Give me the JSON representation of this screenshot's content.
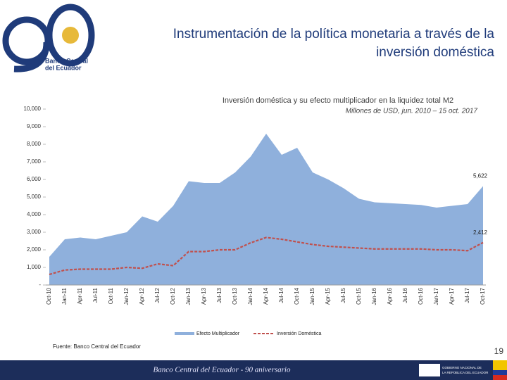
{
  "header": {
    "title_lines": [
      "Instrumentación de la política monetaria a través de la",
      "inversión doméstica"
    ],
    "logo_lines": [
      "Banco Central",
      "del Ecuador"
    ]
  },
  "chart_data": {
    "type": "area",
    "title": "Inversión doméstica y su efecto multiplicador en la liquidez total M2",
    "subtitle": "Millones de USD, jun. 2010 – 15 oct. 2017",
    "categories": [
      "Oct-10",
      "Jan-11",
      "Apr-11",
      "Jul-11",
      "Oct-11",
      "Jan-12",
      "Apr-12",
      "Jul-12",
      "Oct-12",
      "Jan-13",
      "Apr-13",
      "Jul-13",
      "Oct-13",
      "Jan-14",
      "Apr-14",
      "Jul-14",
      "Oct-14",
      "Jan-15",
      "Apr-15",
      "Jul-15",
      "Oct-15",
      "Jan-16",
      "Apr-16",
      "Jul-16",
      "Oct-16",
      "Jan-17",
      "Apr-17",
      "Jul-17",
      "Oct-17"
    ],
    "series": [
      {
        "name": "Efecto Multiplicador",
        "type": "area",
        "color": "#8fb0dc",
        "values": [
          1600,
          2600,
          2700,
          2600,
          2800,
          3000,
          3900,
          3600,
          4500,
          5900,
          5800,
          5800,
          6400,
          7300,
          8600,
          7400,
          7800,
          6400,
          6000,
          5500,
          4900,
          4700,
          4650,
          4600,
          4550,
          4400,
          4500,
          4600,
          5622
        ],
        "value_labels": [
          null,
          null,
          null,
          null,
          null,
          null,
          null,
          null,
          null,
          null,
          null,
          null,
          null,
          null,
          null,
          null,
          null,
          null,
          null,
          null,
          null,
          null,
          null,
          null,
          null,
          null,
          null,
          null,
          "5,622"
        ]
      },
      {
        "name": "Inversión Doméstica",
        "type": "line",
        "color": "#c0504d",
        "dashed": true,
        "values": [
          600,
          850,
          900,
          900,
          900,
          1000,
          950,
          1200,
          1100,
          1900,
          1900,
          2000,
          2000,
          2400,
          2700,
          2600,
          2450,
          2300,
          2200,
          2150,
          2100,
          2050,
          2050,
          2050,
          2050,
          2000,
          2000,
          1950,
          2412
        ],
        "value_labels": [
          null,
          null,
          null,
          null,
          null,
          null,
          null,
          null,
          null,
          null,
          null,
          null,
          null,
          null,
          null,
          null,
          null,
          null,
          null,
          null,
          null,
          null,
          null,
          null,
          null,
          null,
          null,
          null,
          "2,412"
        ]
      }
    ],
    "ylim": [
      0,
      10000
    ],
    "yticks": [
      {
        "value": 0,
        "label": "-"
      },
      {
        "value": 1000,
        "label": "1,000"
      },
      {
        "value": 2000,
        "label": "2,000"
      },
      {
        "value": 3000,
        "label": "3,000"
      },
      {
        "value": 4000,
        "label": "4,000"
      },
      {
        "value": 5000,
        "label": "5,000"
      },
      {
        "value": 6000,
        "label": "6,000"
      },
      {
        "value": 7000,
        "label": "7,000"
      },
      {
        "value": 8000,
        "label": "8,000"
      },
      {
        "value": 9000,
        "label": "9,000"
      },
      {
        "value": 10000,
        "label": "10,000"
      }
    ]
  },
  "source": "Fuente: Banco Central del Ecuador",
  "page_number": "19",
  "footer_text": "Banco Central del Ecuador - 90 aniversario",
  "footer_gov": [
    "GOBIERNO NACIONAL DE",
    "LA REPÚBLICA DEL ECUADOR"
  ]
}
